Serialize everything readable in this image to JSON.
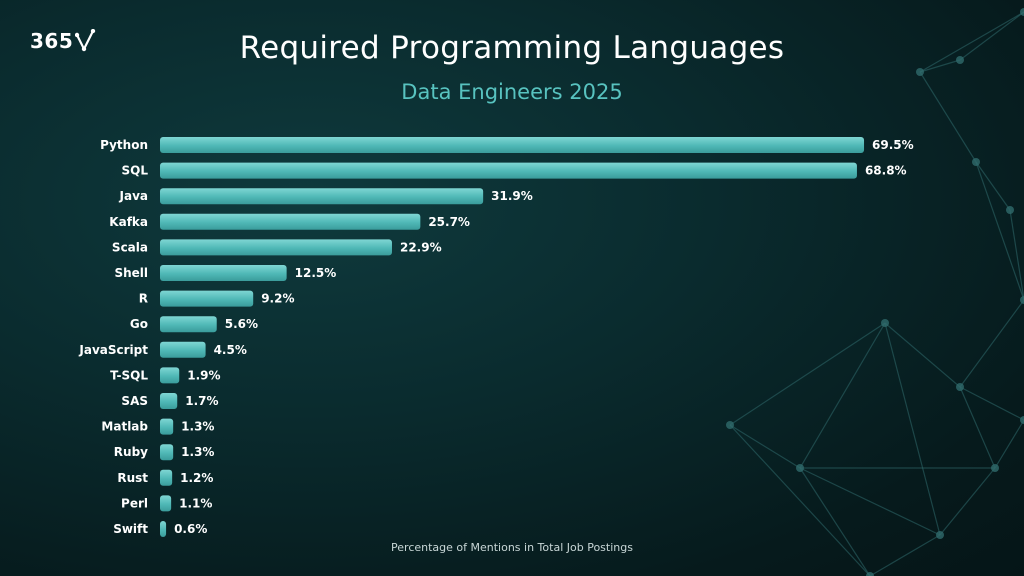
{
  "brand": {
    "logo_text": "365"
  },
  "colors": {
    "bar": "#4fb8b6",
    "bar_highlight": "#74d0ce",
    "accent": "#58c3c0",
    "background": "#082426"
  },
  "chart_data": {
    "type": "bar",
    "orientation": "horizontal",
    "title": "Required Programming Languages",
    "subtitle": "Data Engineers 2025",
    "xlabel": "Percentage of Mentions in Total Job Postings",
    "ylabel": "",
    "categories": [
      "Python",
      "SQL",
      "Java",
      "Kafka",
      "Scala",
      "Shell",
      "R",
      "Go",
      "JavaScript",
      "T-SQL",
      "SAS",
      "Matlab",
      "Ruby",
      "Rust",
      "Perl",
      "Swift"
    ],
    "values": [
      69.5,
      68.8,
      31.9,
      25.7,
      22.9,
      12.5,
      9.2,
      5.6,
      4.5,
      1.9,
      1.7,
      1.3,
      1.3,
      1.2,
      1.1,
      0.6
    ],
    "value_labels": [
      "69.5%",
      "68.8%",
      "31.9%",
      "25.7%",
      "22.9%",
      "12.5%",
      "9.2%",
      "5.6%",
      "4.5%",
      "1.9%",
      "1.7%",
      "1.3%",
      "1.3%",
      "1.2%",
      "1.1%",
      "0.6%"
    ],
    "grid": false,
    "legend": "none"
  }
}
